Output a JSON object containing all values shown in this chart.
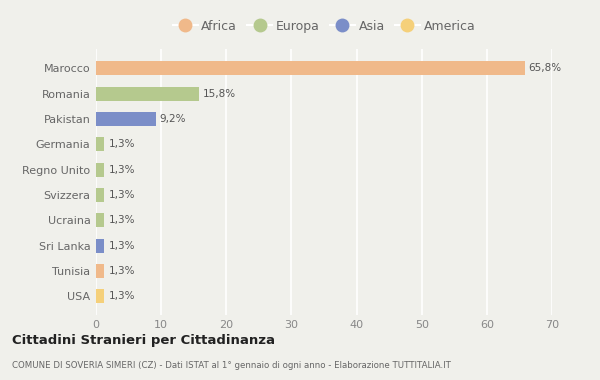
{
  "countries": [
    "Marocco",
    "Romania",
    "Pakistan",
    "Germania",
    "Regno Unito",
    "Svizzera",
    "Ucraina",
    "Sri Lanka",
    "Tunisia",
    "USA"
  ],
  "values": [
    65.8,
    15.8,
    9.2,
    1.3,
    1.3,
    1.3,
    1.3,
    1.3,
    1.3,
    1.3
  ],
  "labels": [
    "65,8%",
    "15,8%",
    "9,2%",
    "1,3%",
    "1,3%",
    "1,3%",
    "1,3%",
    "1,3%",
    "1,3%",
    "1,3%"
  ],
  "continents": [
    "Africa",
    "Europa",
    "Asia",
    "Europa",
    "Europa",
    "Europa",
    "Europa",
    "Asia",
    "Africa",
    "America"
  ],
  "colors": {
    "Africa": "#F0B98A",
    "Europa": "#B5C98E",
    "Asia": "#7B8EC8",
    "America": "#F5D07A"
  },
  "legend_order": [
    "Africa",
    "Europa",
    "Asia",
    "America"
  ],
  "xlim": [
    0,
    70
  ],
  "xticks": [
    0,
    10,
    20,
    30,
    40,
    50,
    60,
    70
  ],
  "title": "Cittadini Stranieri per Cittadinanza",
  "subtitle": "COMUNE DI SOVERIA SIMERI (CZ) - Dati ISTAT al 1° gennaio di ogni anno - Elaborazione TUTTITALIA.IT",
  "bg_color": "#f0f0eb",
  "grid_color": "#ffffff",
  "bar_height": 0.55
}
